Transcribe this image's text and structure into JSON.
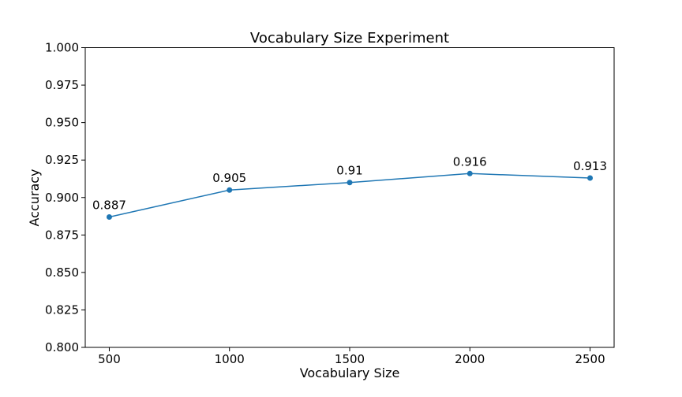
{
  "chart_data": {
    "type": "line",
    "title": "Vocabulary Size Experiment",
    "xlabel": "Vocabulary Size",
    "ylabel": "Accuracy",
    "x": [
      500,
      1000,
      1500,
      2000,
      2500
    ],
    "series": [
      {
        "values": [
          0.887,
          0.905,
          0.91,
          0.916,
          0.913
        ],
        "labels": [
          "0.887",
          "0.905",
          "0.91",
          "0.916",
          "0.913"
        ],
        "color": "#1f77b4"
      }
    ],
    "xticks": [
      "500",
      "1000",
      "1500",
      "2000",
      "2500"
    ],
    "yticks": [
      "0.800",
      "0.825",
      "0.850",
      "0.875",
      "0.900",
      "0.925",
      "0.950",
      "0.975",
      "1.000"
    ],
    "xlim": [
      400,
      2600
    ],
    "ylim": [
      0.8,
      1.0
    ],
    "grid": false,
    "legend": "none"
  }
}
